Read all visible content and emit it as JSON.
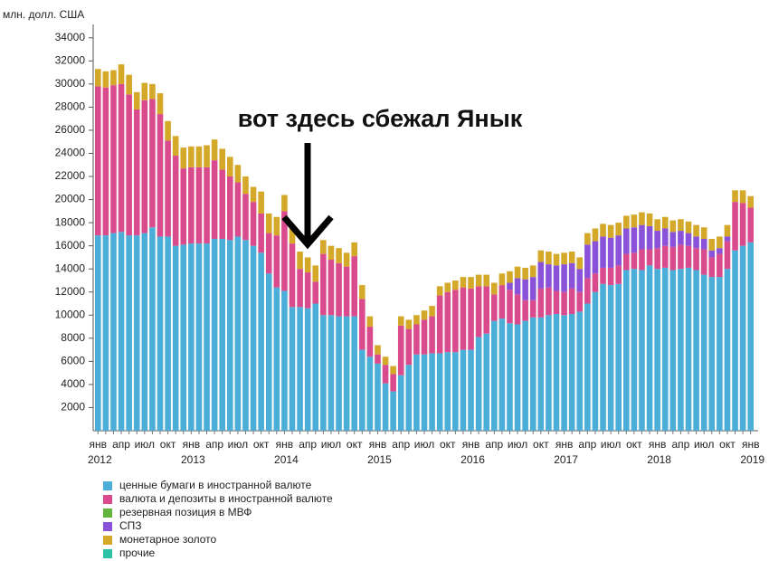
{
  "chart_data": {
    "type": "stacked_bar",
    "y_axis_label": "млн. долл. США",
    "annotation": "вот здесь сбежал Янык",
    "ylim": [
      0,
      35000
    ],
    "yticks": [
      2000,
      4000,
      6000,
      8000,
      10000,
      12000,
      14000,
      16000,
      18000,
      20000,
      22000,
      24000,
      26000,
      28000,
      30000,
      32000,
      34000
    ],
    "categories": [
      "янв",
      null,
      null,
      "апр",
      null,
      null,
      "июл",
      null,
      null,
      "окт",
      null,
      null,
      "янв",
      null,
      null,
      "апр",
      null,
      null,
      "июл",
      null,
      null,
      "окт",
      null,
      null,
      "янв",
      null,
      null,
      "апр",
      null,
      null,
      "июл",
      null,
      null,
      "окт",
      null,
      null,
      "янв",
      null,
      null,
      "апр",
      null,
      null,
      "июл",
      null,
      null,
      "окт",
      null,
      null,
      "янв",
      null,
      null,
      "апр",
      null,
      null,
      "июл",
      null,
      null,
      "окт",
      null,
      null,
      "янв",
      null,
      null,
      "апр",
      null,
      null,
      "июл",
      null,
      null,
      "окт",
      null,
      null,
      "янв",
      null,
      null,
      "апр",
      null,
      null,
      "июл",
      null,
      null,
      "окт",
      null,
      null,
      "янв"
    ],
    "year_labels": [
      "2012",
      null,
      null,
      null,
      null,
      null,
      null,
      null,
      null,
      null,
      null,
      null,
      "2013",
      null,
      null,
      null,
      null,
      null,
      null,
      null,
      null,
      null,
      null,
      null,
      "2014",
      null,
      null,
      null,
      null,
      null,
      null,
      null,
      null,
      null,
      null,
      null,
      "2015",
      null,
      null,
      null,
      null,
      null,
      null,
      null,
      null,
      null,
      null,
      null,
      "2016",
      null,
      null,
      null,
      null,
      null,
      null,
      null,
      null,
      null,
      null,
      null,
      "2017",
      null,
      null,
      null,
      null,
      null,
      null,
      null,
      null,
      null,
      null,
      null,
      "2018",
      null,
      null,
      null,
      null,
      null,
      null,
      null,
      null,
      null,
      null,
      null,
      "2019"
    ],
    "series": [
      {
        "name": "ценные бумаги в иностранной валюте",
        "color": "#4aaed9",
        "values": [
          16900,
          16900,
          17100,
          17200,
          16900,
          16900,
          17100,
          17600,
          16800,
          16800,
          16000,
          16100,
          16200,
          16200,
          16200,
          16600,
          16600,
          16500,
          16800,
          16500,
          16000,
          15400,
          13600,
          12400,
          12100,
          10700,
          10700,
          10600,
          11000,
          10000,
          10000,
          9900,
          9900,
          9900,
          7000,
          6400,
          5800,
          4100,
          3400,
          4800,
          5700,
          6600,
          6600,
          6700,
          6700,
          6800,
          6800,
          7000,
          7000,
          8100,
          8400,
          9500,
          9700,
          9300,
          9200,
          9500,
          9800,
          9800,
          10000,
          10100,
          10000,
          10100,
          10300,
          11000,
          12000,
          12700,
          12600,
          12700,
          13900,
          14000,
          13900,
          14300,
          14000,
          14100,
          13900,
          14000,
          14100,
          13900,
          13500,
          13300,
          13300,
          14000,
          15600,
          16000,
          16300
        ]
      },
      {
        "name": "валюта и депозиты в иностранной валюте",
        "color": "#da4b8e",
        "values": [
          12900,
          12800,
          12800,
          12800,
          12200,
          10900,
          11500,
          11100,
          10600,
          8300,
          7800,
          6600,
          6600,
          6600,
          6600,
          6800,
          6000,
          5500,
          4700,
          4000,
          3800,
          3400,
          3500,
          4500,
          6900,
          5500,
          3300,
          3100,
          1900,
          5300,
          4800,
          4600,
          4300,
          5200,
          4400,
          2600,
          800,
          1600,
          1500,
          4300,
          3100,
          2600,
          3000,
          3200,
          5000,
          5200,
          5400,
          5400,
          5300,
          4400,
          4100,
          2300,
          2900,
          2900,
          2600,
          1800,
          1500,
          2500,
          2400,
          2000,
          2000,
          2200,
          1700,
          2200,
          1600,
          1400,
          1500,
          1600,
          1400,
          1400,
          1800,
          1400,
          1800,
          1900,
          2000,
          2100,
          1900,
          1900,
          2200,
          1700,
          2000,
          2400,
          4200,
          3700,
          3000
        ]
      },
      {
        "name": "резервная позиция в МВФ",
        "color": "#62b43a",
        "values": [
          0,
          0,
          0,
          0,
          0,
          0,
          0,
          0,
          0,
          0,
          0,
          0,
          0,
          0,
          0,
          0,
          0,
          0,
          0,
          0,
          0,
          0,
          0,
          0,
          0,
          0,
          0,
          0,
          0,
          0,
          0,
          0,
          0,
          0,
          0,
          0,
          0,
          0,
          0,
          0,
          0,
          0,
          0,
          0,
          0,
          0,
          0,
          0,
          0,
          0,
          0,
          0,
          0,
          0,
          0,
          0,
          0,
          0,
          0,
          0,
          0,
          0,
          0,
          0,
          0,
          0,
          0,
          0,
          0,
          0,
          0,
          0,
          0,
          0,
          0,
          0,
          0,
          0,
          0,
          0,
          0,
          0,
          0,
          0,
          0
        ]
      },
      {
        "name": "СПЗ",
        "color": "#8a52d9",
        "values": [
          0,
          0,
          0,
          0,
          0,
          0,
          0,
          0,
          0,
          0,
          0,
          0,
          0,
          0,
          0,
          0,
          0,
          0,
          0,
          0,
          0,
          0,
          0,
          0,
          0,
          0,
          0,
          0,
          0,
          0,
          0,
          0,
          0,
          0,
          0,
          0,
          0,
          0,
          0,
          0,
          0,
          0,
          0,
          0,
          0,
          0,
          0,
          0,
          0,
          0,
          0,
          0,
          0,
          600,
          1400,
          1800,
          2000,
          2300,
          2000,
          2200,
          2400,
          2200,
          2000,
          2900,
          2800,
          2700,
          2600,
          2600,
          2200,
          2200,
          2100,
          2000,
          1500,
          1500,
          1300,
          1200,
          1100,
          1000,
          900,
          600,
          500,
          400,
          0,
          0,
          0
        ]
      },
      {
        "name": "монетарное золото",
        "color": "#d4a829",
        "values": [
          1500,
          1400,
          1300,
          1700,
          1700,
          1500,
          1500,
          1300,
          1800,
          1700,
          1700,
          1800,
          1800,
          1800,
          1900,
          1800,
          1800,
          1700,
          1500,
          1500,
          1300,
          1900,
          1700,
          1600,
          1400,
          1600,
          1500,
          1300,
          1400,
          1200,
          1200,
          1300,
          1200,
          1200,
          1200,
          900,
          800,
          700,
          700,
          800,
          800,
          800,
          800,
          900,
          800,
          800,
          800,
          900,
          1000,
          1000,
          1000,
          1000,
          1000,
          1000,
          1000,
          1000,
          1000,
          1000,
          1100,
          1000,
          1000,
          1000,
          1000,
          1000,
          1100,
          1100,
          1100,
          1100,
          1100,
          1100,
          1100,
          1100,
          1000,
          1000,
          1000,
          1000,
          1000,
          1000,
          1000,
          1000,
          1000,
          1000,
          1000,
          1100,
          1000
        ]
      },
      {
        "name": "прочие",
        "color": "#2dc2a6",
        "values": [
          0,
          0,
          0,
          0,
          0,
          0,
          0,
          0,
          0,
          0,
          0,
          0,
          0,
          0,
          0,
          0,
          0,
          0,
          0,
          0,
          0,
          0,
          0,
          0,
          0,
          0,
          0,
          0,
          0,
          0,
          0,
          0,
          0,
          0,
          0,
          0,
          0,
          0,
          0,
          0,
          0,
          0,
          0,
          0,
          0,
          0,
          0,
          0,
          0,
          0,
          0,
          0,
          0,
          0,
          0,
          0,
          0,
          0,
          0,
          0,
          0,
          0,
          0,
          0,
          0,
          0,
          0,
          0,
          0,
          0,
          0,
          0,
          0,
          0,
          0,
          0,
          0,
          0,
          0,
          0,
          0,
          0,
          0,
          0,
          0
        ]
      }
    ]
  }
}
